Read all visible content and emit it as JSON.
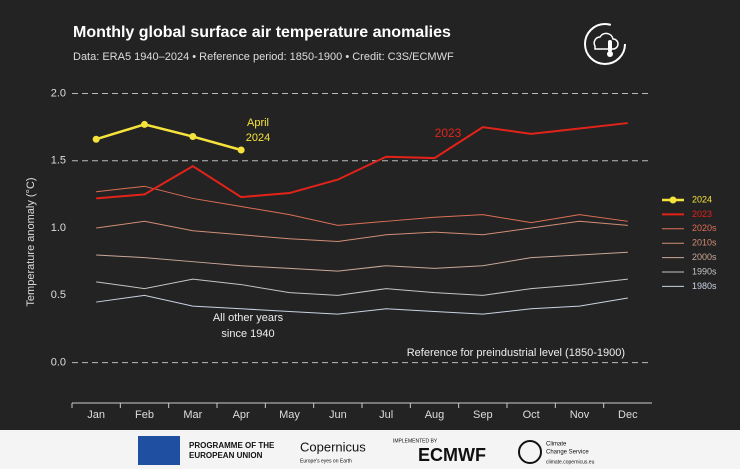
{
  "chart_data": {
    "type": "line",
    "title": "Monthly global surface air temperature anomalies",
    "subtitle": "Data: ERA5 1940–2024 • Reference period: 1850-1900 • Credit: C3S/ECMWF",
    "y_label": "Temperature anomaly (°C)",
    "categories": [
      "Jan",
      "Feb",
      "Mar",
      "Apr",
      "May",
      "Jun",
      "Jul",
      "Aug",
      "Sep",
      "Oct",
      "Nov",
      "Dec"
    ],
    "ylim": [
      -0.3,
      2.1
    ],
    "yticks": [
      {
        "value": 0,
        "label": "0.0"
      },
      0.5,
      {
        "value": 1,
        "label": "1.0"
      },
      1.5,
      {
        "value": 2,
        "label": "2.0"
      }
    ],
    "dashed_gridlines": [
      0,
      1.5,
      2
    ],
    "legend": "right",
    "series": [
      {
        "name": "1980s",
        "color": "#c9d3e3",
        "width": 1,
        "values": [
          0.45,
          0.5,
          0.42,
          0.4,
          0.38,
          0.36,
          0.4,
          0.38,
          0.36,
          0.4,
          0.42,
          0.48
        ]
      },
      {
        "name": "1990s",
        "color": "#c8c4c2",
        "width": 1,
        "values": [
          0.6,
          0.55,
          0.62,
          0.58,
          0.52,
          0.5,
          0.55,
          0.52,
          0.5,
          0.55,
          0.58,
          0.62
        ]
      },
      {
        "name": "2000s",
        "color": "#c9a898",
        "width": 1,
        "values": [
          0.8,
          0.78,
          0.75,
          0.72,
          0.7,
          0.68,
          0.72,
          0.7,
          0.72,
          0.78,
          0.8,
          0.82
        ]
      },
      {
        "name": "2010s",
        "color": "#d28e76",
        "width": 1,
        "values": [
          1.0,
          1.05,
          0.98,
          0.95,
          0.92,
          0.9,
          0.95,
          0.97,
          0.95,
          1.0,
          1.05,
          1.02
        ]
      },
      {
        "name": "2020s",
        "color": "#dd6f55",
        "width": 1,
        "values": [
          1.27,
          1.31,
          1.22,
          1.16,
          1.1,
          1.02,
          1.05,
          1.08,
          1.1,
          1.04,
          1.1,
          1.05
        ]
      },
      {
        "name": "2023",
        "color": "#e2231a",
        "width": 2,
        "values": [
          1.22,
          1.25,
          1.46,
          1.23,
          1.26,
          1.36,
          1.53,
          1.52,
          1.75,
          1.7,
          1.74,
          1.78
        ]
      },
      {
        "name": "2024",
        "color": "#f5e33c",
        "width": 2.5,
        "marker": true,
        "values": [
          1.66,
          1.77,
          1.68,
          1.58,
          null,
          null,
          null,
          null,
          null,
          null,
          null,
          null
        ]
      }
    ],
    "annotations": {
      "april": [
        "April",
        "2024"
      ],
      "y2023": "2023",
      "others": [
        "All other years",
        "since 1940"
      ],
      "reference": "Reference for preindustrial level (1850-1900)"
    }
  },
  "footer": {
    "eu": [
      "PROGRAMME OF THE",
      "EUROPEAN UNION"
    ],
    "copernicus": "Copernicus",
    "copernicus_sub": "Europe's eyes on Earth",
    "implemented": "IMPLEMENTED BY",
    "ecmwf": "ECMWF",
    "c3s": [
      "Climate",
      "Change Service"
    ],
    "c3s_url": "climate.copernicus.eu"
  }
}
